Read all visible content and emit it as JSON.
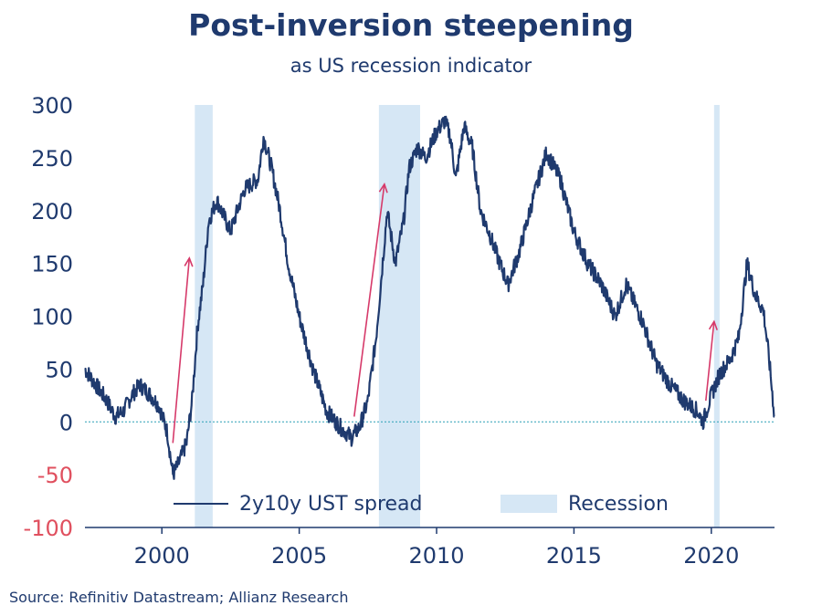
{
  "chart_data": {
    "type": "line",
    "title": "Post-inversion steepening",
    "subtitle": "as US recession indicator",
    "source": "Source: Refinitiv Datastream; Allianz Research",
    "xlim": [
      1997.2,
      2022.3
    ],
    "ylim": [
      -100,
      300
    ],
    "y_ticks": [
      300,
      250,
      200,
      150,
      100,
      50,
      0,
      -50,
      -100
    ],
    "x_ticks": [
      2000,
      2005,
      2010,
      2015,
      2020
    ],
    "x_tick_labels": [
      "2000",
      "2005",
      "2010",
      "2015",
      "2020"
    ],
    "y_tick_labels": [
      "300",
      "250",
      "200",
      "150",
      "100",
      "50",
      "0",
      "-50",
      "-100"
    ],
    "positive_tick_color": "#1f3a6e",
    "negative_tick_color": "#e0505f",
    "line_color": "#1f3a6e",
    "recession_color": "#d6e7f5",
    "arrow_color": "#d63a6a",
    "zero_line_color": "#2a9fb5",
    "series": [
      {
        "name": "2y10y UST spread",
        "x": [
          1997.2,
          1997.6,
          1998.0,
          1998.3,
          1998.6,
          1998.9,
          1999.2,
          1999.6,
          1999.9,
          2000.2,
          2000.4,
          2000.6,
          2000.9,
          2001.1,
          2001.3,
          2001.5,
          2001.7,
          2002.0,
          2002.5,
          2003.0,
          2003.5,
          2003.7,
          2004.0,
          2004.3,
          2004.6,
          2005.0,
          2005.5,
          2006.0,
          2006.5,
          2006.9,
          2007.2,
          2007.5,
          2007.8,
          2008.0,
          2008.2,
          2008.5,
          2008.8,
          2009.0,
          2009.3,
          2009.6,
          2010.0,
          2010.3,
          2010.5,
          2010.7,
          2011.0,
          2011.3,
          2011.6,
          2011.9,
          2012.3,
          2012.6,
          2013.0,
          2013.5,
          2014.0,
          2014.5,
          2015.0,
          2015.5,
          2016.0,
          2016.5,
          2016.9,
          2017.5,
          2018.0,
          2018.5,
          2019.0,
          2019.5,
          2019.7,
          2020.0,
          2020.3,
          2020.7,
          2021.0,
          2021.3,
          2021.6,
          2021.9,
          2022.1,
          2022.3
        ],
        "values": [
          50,
          35,
          20,
          5,
          10,
          25,
          35,
          25,
          15,
          -10,
          -50,
          -40,
          -20,
          20,
          90,
          130,
          190,
          210,
          180,
          220,
          230,
          270,
          240,
          200,
          150,
          100,
          50,
          10,
          -5,
          -15,
          -5,
          20,
          80,
          140,
          200,
          150,
          190,
          240,
          260,
          250,
          275,
          285,
          270,
          230,
          280,
          260,
          200,
          180,
          150,
          130,
          160,
          210,
          255,
          230,
          180,
          150,
          130,
          100,
          130,
          95,
          55,
          35,
          20,
          10,
          0,
          25,
          45,
          60,
          80,
          150,
          120,
          105,
          60,
          5
        ]
      },
      {
        "name": "Recession",
        "ranges": [
          [
            2001.2,
            2001.85
          ],
          [
            2007.9,
            2009.4
          ],
          [
            2020.1,
            2020.3
          ]
        ]
      }
    ],
    "arrows": [
      {
        "x0": 2000.4,
        "y0": -20,
        "x1": 2001.0,
        "y1": 155
      },
      {
        "x0": 2007.0,
        "y0": 5,
        "x1": 2008.1,
        "y1": 225
      },
      {
        "x0": 2019.8,
        "y0": 20,
        "x1": 2020.1,
        "y1": 95
      }
    ],
    "legend": {
      "line_label": "2y10y UST spread",
      "recession_label": "Recession",
      "position": "bottom-center"
    }
  }
}
